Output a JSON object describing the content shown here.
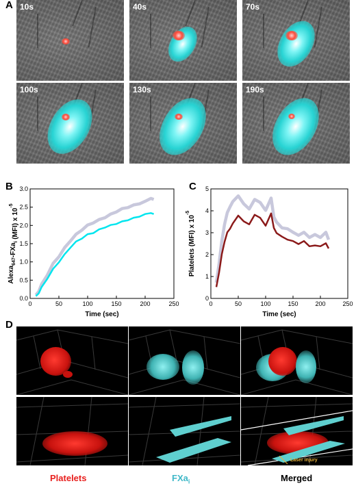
{
  "panelA": {
    "letter": "A",
    "frames": [
      {
        "time": "10s",
        "platelet_level": 0.15,
        "fxa_level": 0.0
      },
      {
        "time": "40s",
        "platelet_level": 0.45,
        "fxa_level": 0.35
      },
      {
        "time": "70s",
        "platelet_level": 0.45,
        "fxa_level": 0.6
      },
      {
        "time": "100s",
        "platelet_level": 0.2,
        "fxa_level": 0.8
      },
      {
        "time": "130s",
        "platelet_level": 0.15,
        "fxa_level": 0.85
      },
      {
        "time": "190s",
        "platelet_level": 0.1,
        "fxa_level": 0.85
      }
    ]
  },
  "panelB": {
    "letter": "B",
    "chart_data": {
      "type": "line",
      "xlabel": "Time (sec)",
      "ylabel_main": "Alexa",
      "ylabel_sub": "647",
      "ylabel_rest": "-FXa",
      "ylabel_sub2": "i",
      "ylabel_tail": " (MFI) x 10",
      "ylabel_exp": "-5",
      "xlim": [
        0,
        250
      ],
      "ylim": [
        0,
        3.0
      ],
      "xticks": [
        "0",
        "50",
        "100",
        "150",
        "200",
        "250"
      ],
      "yticks": [
        "0.0",
        "0.5",
        "1.0",
        "1.5",
        "2.0",
        "2.5",
        "3.0"
      ],
      "series": [
        {
          "color": "#00e5ee",
          "x": [
            10,
            15,
            20,
            30,
            40,
            50,
            60,
            70,
            80,
            90,
            100,
            110,
            120,
            130,
            140,
            150,
            160,
            170,
            180,
            190,
            200,
            210,
            215
          ],
          "y": [
            0.05,
            0.15,
            0.3,
            0.55,
            0.8,
            1.0,
            1.2,
            1.4,
            1.55,
            1.65,
            1.75,
            1.8,
            1.88,
            1.95,
            2.0,
            2.05,
            2.1,
            2.15,
            2.2,
            2.25,
            2.3,
            2.35,
            2.3
          ]
        },
        {
          "color": "#c8c8dc",
          "x": [
            10,
            15,
            20,
            30,
            40,
            50,
            60,
            70,
            80,
            90,
            100,
            110,
            120,
            130,
            140,
            150,
            160,
            170,
            180,
            190,
            200,
            210,
            215
          ],
          "y": [
            0.08,
            0.2,
            0.38,
            0.65,
            0.95,
            1.15,
            1.38,
            1.58,
            1.75,
            1.88,
            2.0,
            2.08,
            2.15,
            2.22,
            2.3,
            2.38,
            2.45,
            2.5,
            2.55,
            2.6,
            2.65,
            2.75,
            2.7
          ]
        }
      ]
    }
  },
  "panelC": {
    "letter": "C",
    "chart_data": {
      "type": "line",
      "xlabel": "Time (sec)",
      "ylabel": "Platelets (MFI) x 10",
      "ylabel_exp": "-5",
      "xlim": [
        0,
        250
      ],
      "ylim": [
        0,
        5
      ],
      "xticks": [
        "0",
        "50",
        "100",
        "150",
        "200",
        "250"
      ],
      "yticks": [
        "0",
        "1",
        "2",
        "3",
        "4",
        "5"
      ],
      "series": [
        {
          "color": "#8b1a1a",
          "x": [
            10,
            15,
            20,
            25,
            30,
            35,
            40,
            50,
            60,
            70,
            80,
            90,
            100,
            110,
            115,
            120,
            130,
            140,
            150,
            160,
            170,
            180,
            190,
            200,
            210,
            215
          ],
          "y": [
            0.5,
            1.2,
            2.0,
            2.6,
            3.0,
            3.2,
            3.4,
            3.8,
            3.5,
            3.4,
            3.8,
            3.7,
            3.3,
            3.9,
            3.2,
            3.0,
            2.8,
            2.7,
            2.6,
            2.5,
            2.6,
            2.4,
            2.4,
            2.4,
            2.5,
            2.3
          ]
        },
        {
          "color": "#c8c8dc",
          "x": [
            10,
            15,
            20,
            25,
            30,
            35,
            40,
            50,
            60,
            70,
            80,
            90,
            100,
            110,
            115,
            120,
            130,
            140,
            150,
            160,
            170,
            180,
            190,
            200,
            210,
            215
          ],
          "y": [
            0.7,
            1.6,
            2.6,
            3.4,
            3.9,
            4.2,
            4.4,
            4.7,
            4.3,
            4.1,
            4.5,
            4.4,
            4.0,
            4.6,
            3.7,
            3.5,
            3.2,
            3.2,
            3.0,
            2.9,
            3.0,
            2.8,
            2.9,
            2.8,
            3.0,
            2.7
          ]
        }
      ]
    }
  },
  "panelD": {
    "letter": "D",
    "captions": {
      "platelets": "Platelets",
      "fxa_main": "FXa",
      "fxa_sub": "i",
      "merged": "Merged"
    },
    "annotation": "Laser injury",
    "colors": {
      "platelets": "#e8201e",
      "fxa": "#5fcfcf",
      "merged": "#000000",
      "annotation": "#e8b23a"
    }
  }
}
